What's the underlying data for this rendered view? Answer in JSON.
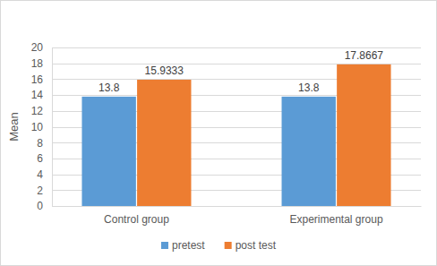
{
  "chart_data": {
    "type": "bar",
    "y_label": "Mean",
    "categories": [
      "Control group",
      "Experimental group"
    ],
    "series": [
      {
        "name": "pretest",
        "color": "#5b9bd5",
        "values": [
          13.8,
          13.8
        ]
      },
      {
        "name": "post test",
        "color": "#ed7d31",
        "values": [
          15.9333,
          17.8667
        ]
      }
    ],
    "ylim": [
      0,
      20
    ],
    "yticks": [
      0,
      2,
      4,
      6,
      8,
      10,
      12,
      14,
      16,
      18,
      20
    ],
    "grid": true,
    "data_labels": true,
    "legend": "bottom"
  }
}
